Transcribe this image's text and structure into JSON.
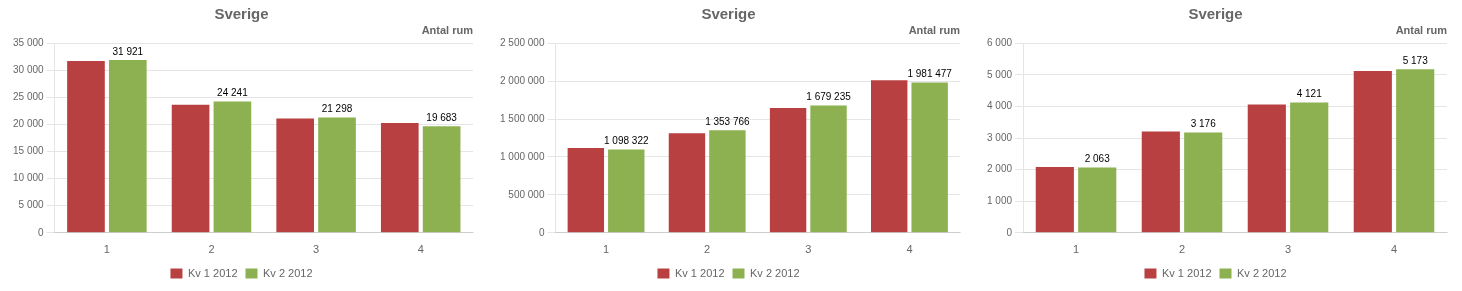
{
  "chart_data": [
    {
      "type": "bar",
      "title": "Sverige",
      "subtitle": "Antal rum",
      "categories": [
        "1",
        "2",
        "3",
        "4"
      ],
      "series": [
        {
          "name": "Kv 1 2012",
          "color": "#b94040",
          "values": [
            31700,
            23650,
            21100,
            20250
          ]
        },
        {
          "name": "Kv 2 2012",
          "color": "#8db050",
          "values": [
            31921,
            24241,
            21298,
            19683
          ],
          "data_labels": true,
          "value_labels": [
            "31 921",
            "24 241",
            "21 298",
            "19 683"
          ]
        }
      ],
      "ylim": [
        0,
        35000
      ],
      "yticks": [
        0,
        {
          "value": 5000,
          "label": "5 000"
        },
        {
          "value": 10000,
          "label": "10 000"
        },
        {
          "value": 15000,
          "label": "15 000"
        },
        {
          "value": 20000,
          "label": "20 000"
        },
        {
          "value": 25000,
          "label": "25 000"
        },
        {
          "value": 30000,
          "label": "30 000"
        },
        {
          "value": 35000,
          "label": "35 000"
        }
      ],
      "grid": true,
      "legend": "bottom"
    },
    {
      "type": "bar",
      "title": "Sverige",
      "subtitle": "Antal rum",
      "categories": [
        "1",
        "2",
        "3",
        "4"
      ],
      "series": [
        {
          "name": "Kv 1 2012",
          "color": "#b94040",
          "values": [
            1118000,
            1312000,
            1645000,
            2012000
          ]
        },
        {
          "name": "Kv 2 2012",
          "color": "#8db050",
          "values": [
            1098322,
            1353766,
            1679235,
            1981477
          ],
          "data_labels": true,
          "value_labels": [
            "1 098 322",
            "1 353 766",
            "1 679 235",
            "1 981 477"
          ]
        }
      ],
      "ylim": [
        0,
        2500000
      ],
      "yticks": [
        0,
        {
          "value": 500000,
          "label": "500 000"
        },
        {
          "value": 1000000,
          "label": "1 000 000"
        },
        {
          "value": 1500000,
          "label": "1 500 000"
        },
        {
          "value": 2000000,
          "label": "2 000 000"
        },
        {
          "value": 2500000,
          "label": "2 500 000"
        }
      ],
      "grid": true,
      "legend": "bottom"
    },
    {
      "type": "bar",
      "title": "Sverige",
      "subtitle": "Antal rum",
      "categories": [
        "1",
        "2",
        "3",
        "4"
      ],
      "series": [
        {
          "name": "Kv 1 2012",
          "color": "#b94040",
          "values": [
            2080,
            3205,
            4060,
            5120
          ]
        },
        {
          "name": "Kv 2 2012",
          "color": "#8db050",
          "values": [
            2063,
            3176,
            4121,
            5173
          ],
          "data_labels": true,
          "value_labels": [
            "2 063",
            "3 176",
            "4 121",
            "5 173"
          ]
        }
      ],
      "ylim": [
        0,
        6000
      ],
      "yticks": [
        0,
        {
          "value": 1000,
          "label": "1 000"
        },
        {
          "value": 2000,
          "label": "2 000"
        },
        {
          "value": 3000,
          "label": "3 000"
        },
        {
          "value": 4000,
          "label": "4 000"
        },
        {
          "value": 5000,
          "label": "5 000"
        },
        {
          "value": 6000,
          "label": "6 000"
        }
      ],
      "grid": true,
      "legend": "bottom"
    }
  ]
}
